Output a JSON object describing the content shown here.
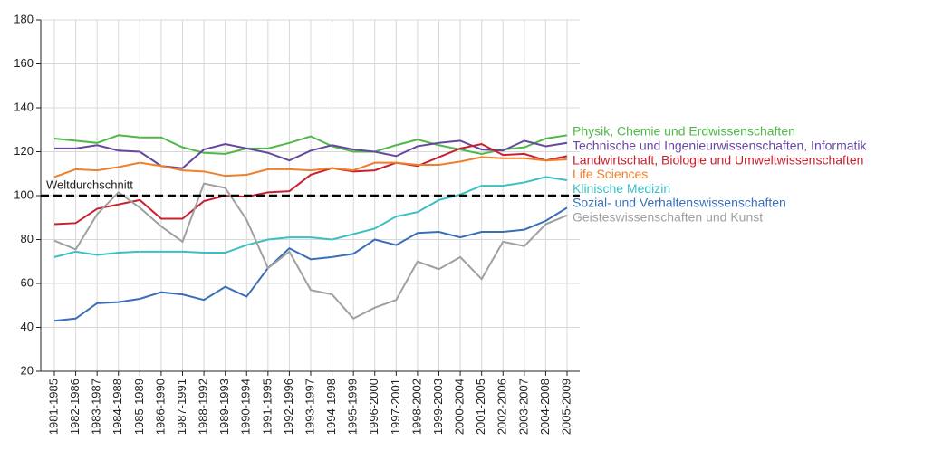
{
  "chart_data": {
    "type": "line",
    "categories": [
      "1981-1985",
      "1982-1986",
      "1983-1987",
      "1984-1988",
      "1985-1989",
      "1986-1990",
      "1987-1991",
      "1988-1992",
      "1989-1993",
      "1990-1994",
      "1991-1995",
      "1992-1996",
      "1993-1997",
      "1994-1998",
      "1995-1999",
      "1996-2000",
      "1997-2001",
      "1998-2002",
      "1999-2003",
      "2000-2004",
      "2001-2005",
      "2002-2006",
      "2003-2007",
      "2004-2008",
      "2005-2009"
    ],
    "series": [
      {
        "name": "Physik, Chemie und Erdwissenschaften",
        "color": "#4fb848",
        "values": [
          126,
          125,
          124,
          127.5,
          126.5,
          126.5,
          122,
          119.5,
          119,
          121.5,
          121.5,
          124,
          127,
          122.5,
          120,
          120,
          123,
          125.5,
          123,
          121,
          119,
          121,
          122,
          126,
          127.5
        ]
      },
      {
        "name": "Technische und Ingenieurwissenschaften, Informatik",
        "color": "#6548a0",
        "values": [
          121.5,
          121.5,
          123,
          120.5,
          120,
          113.5,
          112.5,
          121,
          123.5,
          121.5,
          119.5,
          116,
          120.5,
          123,
          121,
          120,
          118,
          122.5,
          124,
          125,
          121,
          120.5,
          125,
          122.5,
          124
        ]
      },
      {
        "name": "Landwirtschaft, Biologie und Umweltwissenschaften",
        "color": "#c8202f",
        "values": [
          87,
          87.5,
          94,
          96,
          98,
          89.5,
          89.5,
          97.5,
          100,
          99.5,
          101.5,
          102,
          109.5,
          112.5,
          111,
          111.5,
          115,
          113.5,
          117.5,
          121.5,
          123.5,
          118.5,
          119,
          116,
          118
        ]
      },
      {
        "name": "Life Sciences",
        "color": "#f07f2a",
        "values": [
          108.5,
          112,
          111.5,
          113,
          115,
          113.5,
          111.5,
          111,
          109,
          109.5,
          112,
          112,
          111.5,
          112.5,
          111.5,
          115,
          115,
          114,
          114,
          115.5,
          117.5,
          117,
          117,
          116,
          116.5
        ]
      },
      {
        "name": "Klinische Medizin",
        "color": "#3bbfc4",
        "values": [
          72,
          74.5,
          73,
          74,
          74.5,
          74.5,
          74.5,
          74,
          74,
          77.5,
          80,
          81,
          81,
          80,
          82.5,
          85,
          90.5,
          92.5,
          98,
          100.5,
          104.5,
          104.5,
          106,
          108.5,
          107
        ]
      },
      {
        "name": "Sozial- und Verhaltenswissenschaften",
        "color": "#3a6fb8",
        "values": [
          43,
          44,
          51,
          51.5,
          53,
          56,
          55,
          52.5,
          58.5,
          54,
          67,
          76,
          71,
          72,
          73.5,
          80,
          77.5,
          83,
          83.5,
          81,
          83.5,
          83.5,
          84.5,
          88.5,
          94.5
        ]
      },
      {
        "name": "Geisteswissenschaften und Kunst",
        "color": "#a0a0a0",
        "values": [
          79.5,
          75.5,
          91.5,
          101.5,
          94.5,
          86,
          79,
          105.5,
          103.5,
          89,
          67,
          74.5,
          57,
          55,
          44,
          49,
          52.5,
          70,
          66.5,
          72,
          62,
          79,
          77,
          87,
          91
        ]
      }
    ],
    "reference_line": {
      "value": 100,
      "label": "Weltdurchschnitt"
    },
    "ylim": [
      20,
      180
    ],
    "yticks": [
      20,
      40,
      60,
      80,
      100,
      120,
      140,
      160,
      180
    ],
    "grid": true
  }
}
